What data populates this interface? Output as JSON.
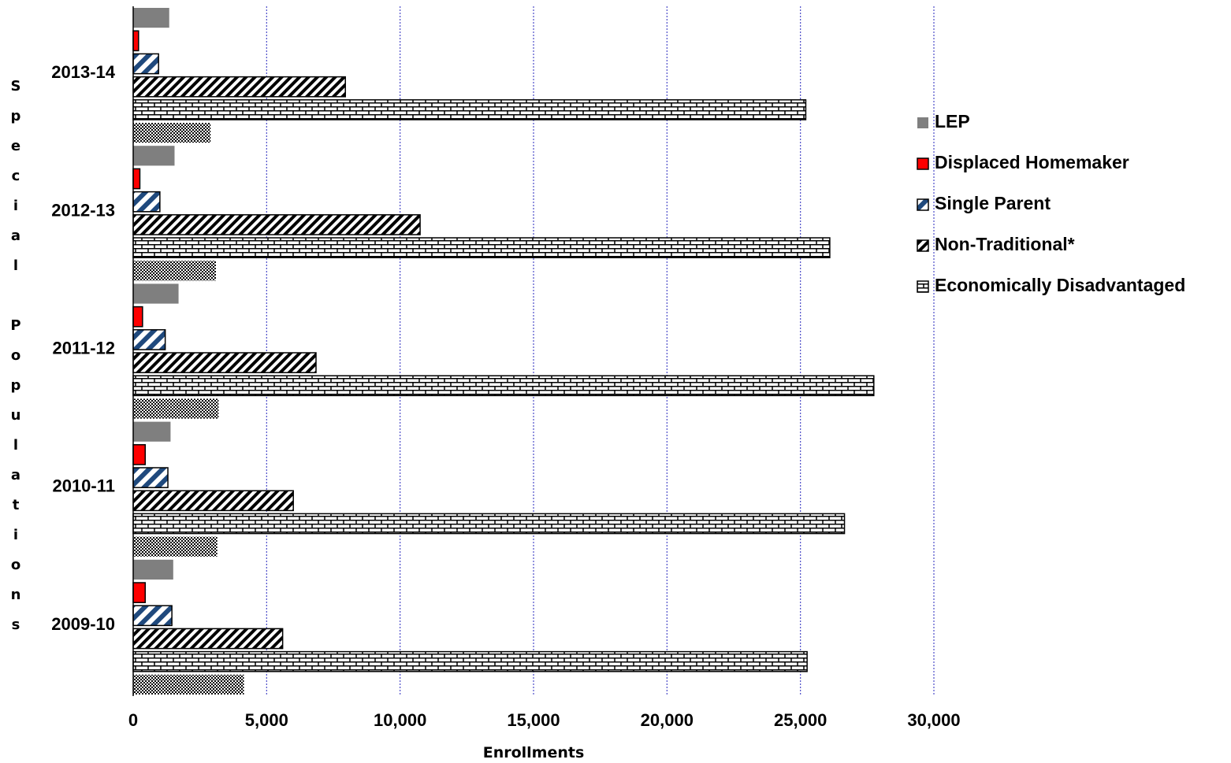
{
  "chart_data": {
    "type": "bar",
    "orientation": "horizontal",
    "categories": [
      "2009-10",
      "2010-11",
      "2011-12",
      "2012-13",
      "2013-14"
    ],
    "series": [
      {
        "name": "LEP",
        "values": [
          1500,
          1400,
          1700,
          1550,
          1350
        ]
      },
      {
        "name": "Displaced Homemaker",
        "values": [
          450,
          450,
          350,
          250,
          200
        ]
      },
      {
        "name": "Single Parent",
        "values": [
          1450,
          1300,
          1200,
          1000,
          950
        ]
      },
      {
        "name": "Non-Traditional*",
        "values": [
          5600,
          6000,
          6850,
          10750,
          7950
        ]
      },
      {
        "name": "Economically Disadvantaged",
        "values": [
          25250,
          26650,
          27750,
          26100,
          25200
        ]
      },
      {
        "name": "",
        "values": [
          4150,
          3150,
          3200,
          3100,
          2900
        ]
      }
    ],
    "xlabel": "Enrollments",
    "ylabel": "Special Populations",
    "xlim": [
      0,
      30000
    ],
    "xticks": [
      "0",
      "5,000",
      "10,000",
      "15,000",
      "20,000",
      "25,000",
      "30,000"
    ],
    "grid": "vertical dotted",
    "legend": "right"
  },
  "colors": {
    "lep": "#7f7f7f",
    "displaced_homemaker": "#ff0000",
    "single_parent": "#1f497d",
    "grid": "#4b4bc8"
  }
}
